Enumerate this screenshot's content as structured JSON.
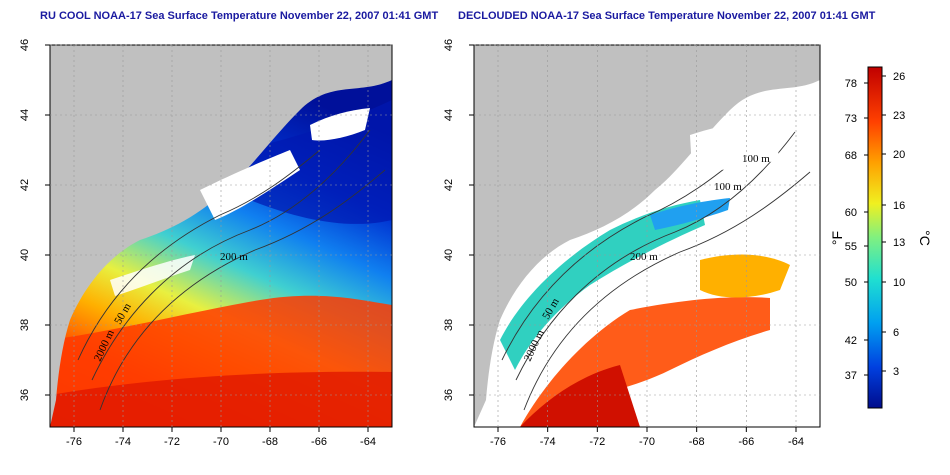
{
  "panels": [
    {
      "title": "RU COOL NOAA-17 Sea Surface Temperature November 22, 2007 01:41 GMT",
      "contour_labels": [
        "50 m",
        "200 m",
        "2000 m"
      ]
    },
    {
      "title": "DECLOUDED NOAA-17 Sea Surface Temperature November 22, 2007 01:41 GMT",
      "contour_labels": [
        "100 m",
        "100 m",
        "200 m",
        "50 m",
        "2000 m"
      ]
    }
  ],
  "axes": {
    "x_ticks": [
      "-76",
      "-74",
      "-72",
      "-70",
      "-68",
      "-66",
      "-64"
    ],
    "y_ticks": [
      "36",
      "38",
      "40",
      "42",
      "44",
      "46"
    ]
  },
  "colorbar": {
    "fahrenheit_label": "°F",
    "celsius_label": "°C",
    "fahrenheit_ticks": [
      "78",
      "73",
      "68",
      "60",
      "55",
      "50",
      "42",
      "37"
    ],
    "celsius_ticks": [
      "26",
      "23",
      "20",
      "16",
      "13",
      "10",
      "6",
      "3"
    ]
  },
  "colors": {
    "land": "#c0c0c0",
    "title": "#1a1aa0",
    "cold": "#00149a",
    "warm": "#c80000"
  }
}
